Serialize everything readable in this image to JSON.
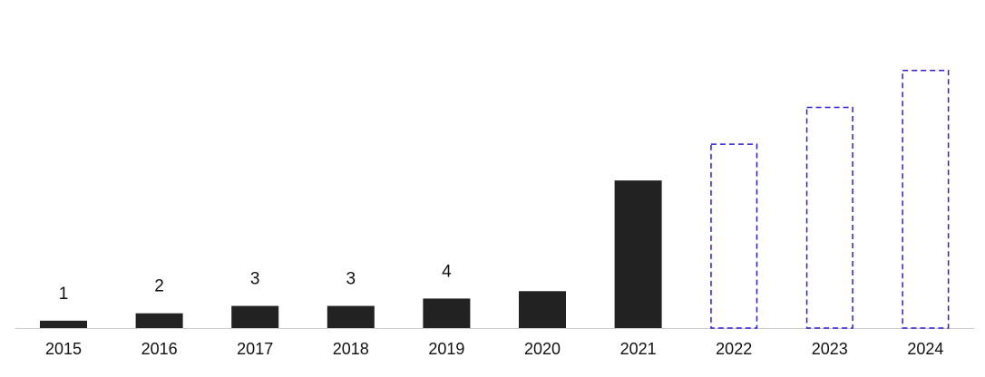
{
  "chart_data": {
    "type": "bar",
    "title": "",
    "xlabel": "",
    "ylabel": "",
    "categories": [
      "2015",
      "2016",
      "2017",
      "2018",
      "2019",
      "2020",
      "2021",
      "2022",
      "2023",
      "2024"
    ],
    "values": [
      1,
      2,
      3,
      3,
      4,
      5,
      20,
      25,
      30,
      35
    ],
    "bar_styles": [
      "actual",
      "actual",
      "actual",
      "actual",
      "actual",
      "actual",
      "actual",
      "forecast",
      "forecast",
      "forecast"
    ],
    "data_labels": [
      "1",
      "2",
      "3",
      "3",
      "4",
      "",
      "",
      "",
      "",
      ""
    ],
    "ylim": [
      0,
      42
    ],
    "grid": false,
    "legend": "none",
    "colors": {
      "actual_fill": "#222222",
      "forecast_outline": "#2b1fd6",
      "axis_line": "#cccccc",
      "text": "#111111"
    }
  }
}
